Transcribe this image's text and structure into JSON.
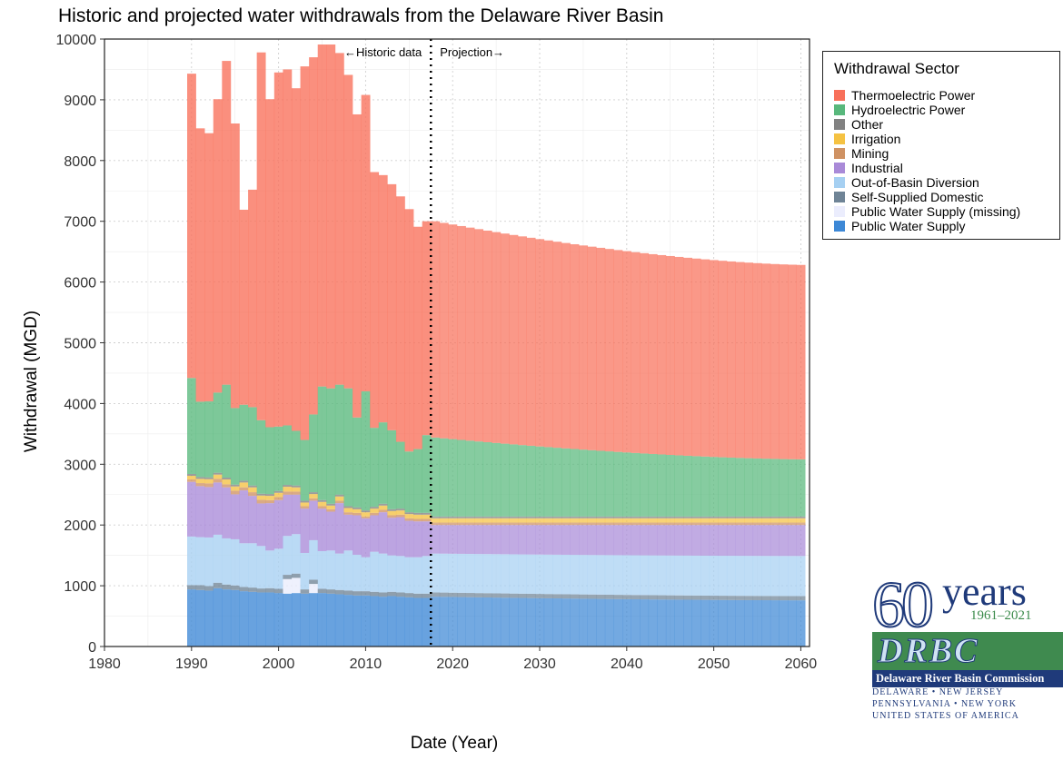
{
  "chart_data": {
    "type": "area",
    "stacked": true,
    "step": true,
    "title": "Historic and projected water withdrawals from the Delaware River Basin",
    "xlabel": "Date (Year)",
    "ylabel": "Withdrawal (MGD)",
    "xlim": [
      1980,
      2061
    ],
    "ylim": [
      0,
      10000
    ],
    "x_ticks": [
      1980,
      1990,
      2000,
      2010,
      2020,
      2030,
      2040,
      2050,
      2060
    ],
    "y_ticks": [
      0,
      1000,
      2000,
      3000,
      4000,
      5000,
      6000,
      7000,
      8000,
      9000,
      10000
    ],
    "grid": true,
    "legend_title": "Withdrawal Sector",
    "legend_position": "right",
    "annotations": {
      "divider_year": 2017.5,
      "historic_label": "←Historic data",
      "projection_label": "Projection→"
    },
    "series": [
      {
        "name": "Public Water Supply",
        "color": "#3d88d6"
      },
      {
        "name": "Public Water Supply (missing)",
        "color": "#ebedfd"
      },
      {
        "name": "Self-Supplied Domestic",
        "color": "#6f8496"
      },
      {
        "name": "Out-of-Basin Diversion",
        "color": "#a6d0f2"
      },
      {
        "name": "Industrial",
        "color": "#a98ad8"
      },
      {
        "name": "Mining",
        "color": "#cf9263"
      },
      {
        "name": "Irrigation",
        "color": "#f5c242"
      },
      {
        "name": "Other",
        "color": "#828282"
      },
      {
        "name": "Hydroelectric Power",
        "color": "#58b87c"
      },
      {
        "name": "Thermoelectric Power",
        "color": "#f8705a"
      }
    ],
    "historic_years": [
      1990,
      1991,
      1992,
      1993,
      1994,
      1995,
      1996,
      1997,
      1998,
      1999,
      2000,
      2001,
      2002,
      2003,
      2004,
      2005,
      2006,
      2007,
      2008,
      2009,
      2010,
      2011,
      2012,
      2013,
      2014,
      2015,
      2016,
      2017
    ],
    "historic_totals": [
      9430,
      8530,
      8450,
      9010,
      9640,
      8610,
      7190,
      7520,
      9780,
      9010,
      9450,
      9500,
      9190,
      9550,
      9700,
      9910,
      9910,
      9770,
      9410,
      8760,
      9080,
      7810,
      7760,
      7610,
      7410,
      7200,
      6910,
      7000
    ],
    "historic_components": {
      "Public Water Supply": [
        940,
        930,
        920,
        960,
        940,
        930,
        910,
        900,
        890,
        890,
        880,
        870,
        880,
        870,
        880,
        880,
        870,
        860,
        850,
        840,
        840,
        830,
        820,
        830,
        820,
        810,
        800,
        800
      ],
      "Public Water Supply (missing)": [
        0,
        0,
        0,
        0,
        0,
        0,
        0,
        0,
        0,
        0,
        0,
        240,
        250,
        0,
        150,
        0,
        0,
        0,
        0,
        0,
        0,
        0,
        0,
        0,
        0,
        0,
        0,
        0
      ],
      "Self-Supplied Domestic": [
        70,
        80,
        75,
        90,
        80,
        75,
        70,
        70,
        65,
        70,
        70,
        70,
        70,
        70,
        70,
        70,
        70,
        70,
        70,
        70,
        70,
        70,
        70,
        70,
        70,
        70,
        70,
        70
      ],
      "Out-of-Basin Diversion": [
        800,
        790,
        800,
        790,
        760,
        760,
        720,
        730,
        700,
        620,
        660,
        640,
        650,
        600,
        650,
        620,
        640,
        600,
        660,
        600,
        560,
        660,
        640,
        600,
        600,
        590,
        600,
        620
      ],
      "Industrial": [
        900,
        840,
        830,
        860,
        840,
        740,
        870,
        780,
        700,
        780,
        800,
        680,
        650,
        730,
        650,
        700,
        640,
        830,
        590,
        650,
        640,
        600,
        680,
        620,
        640,
        600,
        590,
        570
      ],
      "Mining": [
        40,
        50,
        60,
        60,
        50,
        60,
        50,
        60,
        60,
        50,
        50,
        50,
        50,
        40,
        40,
        40,
        40,
        40,
        40,
        40,
        30,
        40,
        40,
        40,
        40,
        40,
        40,
        40
      ],
      "Irrigation": [
        60,
        70,
        70,
        70,
        80,
        70,
        80,
        80,
        70,
        70,
        70,
        80,
        70,
        60,
        70,
        70,
        60,
        70,
        70,
        60,
        70,
        70,
        70,
        70,
        70,
        70,
        70,
        70
      ],
      "Other": [
        30,
        30,
        30,
        30,
        30,
        30,
        30,
        30,
        30,
        30,
        30,
        30,
        30,
        30,
        30,
        30,
        30,
        30,
        30,
        30,
        30,
        30,
        30,
        30,
        30,
        30,
        30,
        30
      ],
      "Hydroelectric Power": [
        1580,
        1240,
        1250,
        1320,
        1530,
        1260,
        1250,
        1290,
        1210,
        1100,
        1060,
        980,
        900,
        1000,
        1280,
        1870,
        1900,
        1810,
        1940,
        1480,
        1960,
        1300,
        1340,
        1300,
        1100,
        1000,
        1050,
        1280
      ]
    },
    "projection_years": [
      2018,
      2061
    ],
    "projection_totals": [
      7000,
      6280
    ],
    "projection_components": {
      "Public Water Supply": [
        820,
        760
      ],
      "Public Water Supply (missing)": [
        0,
        0
      ],
      "Self-Supplied Domestic": [
        70,
        70
      ],
      "Out-of-Basin Diversion": [
        640,
        660
      ],
      "Industrial": [
        470,
        510
      ],
      "Mining": [
        40,
        40
      ],
      "Irrigation": [
        70,
        70
      ],
      "Other": [
        30,
        30
      ],
      "Hydroelectric Power": [
        1300,
        940
      ]
    }
  },
  "logo": {
    "number": "60",
    "word": "years",
    "range": "1961–2021",
    "name": "Delaware River Basin Commission",
    "states": [
      "DELAWARE  •  NEW JERSEY",
      "PENNSYLVANIA  •  NEW YORK",
      "UNITED STATES OF AMERICA"
    ]
  }
}
